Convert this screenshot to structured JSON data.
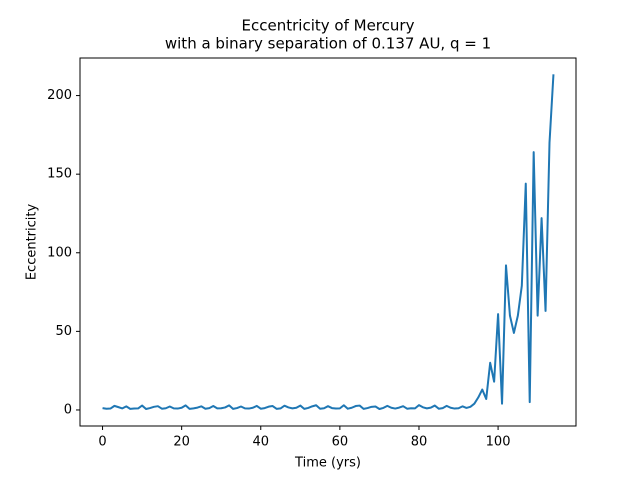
{
  "chart_data": {
    "type": "line",
    "title": [
      "Eccentricity of Mercury",
      "with a binary separation of 0.137 AU, q = 1"
    ],
    "x_label": "Time (yrs)",
    "y_label": "Eccentricity",
    "x": [
      0,
      1,
      2,
      3,
      4,
      5,
      6,
      7,
      8,
      9,
      10,
      11,
      12,
      13,
      14,
      15,
      16,
      17,
      18,
      19,
      20,
      21,
      22,
      23,
      24,
      25,
      26,
      27,
      28,
      29,
      30,
      31,
      32,
      33,
      34,
      35,
      36,
      37,
      38,
      39,
      40,
      41,
      42,
      43,
      44,
      45,
      46,
      47,
      48,
      49,
      50,
      51,
      52,
      53,
      54,
      55,
      56,
      57,
      58,
      59,
      60,
      61,
      62,
      63,
      64,
      65,
      66,
      67,
      68,
      69,
      70,
      71,
      72,
      73,
      74,
      75,
      76,
      77,
      78,
      79,
      80,
      81,
      82,
      83,
      84,
      85,
      86,
      87,
      88,
      89,
      90,
      91,
      92,
      93,
      94,
      95,
      96,
      97,
      98,
      99,
      100,
      101,
      102,
      103,
      104,
      105,
      106,
      107,
      108,
      109,
      110,
      111,
      112,
      113,
      114
    ],
    "series": [
      {
        "name": "Eccentricity",
        "color": "#1f77b4",
        "values": [
          1.2,
          0.8,
          0.9,
          2.6,
          1.8,
          1.0,
          2.3,
          0.7,
          0.9,
          1.0,
          2.8,
          0.6,
          1.2,
          2.0,
          2.4,
          0.8,
          1.1,
          2.2,
          1.0,
          0.9,
          1.4,
          2.9,
          0.7,
          1.0,
          1.5,
          2.3,
          0.8,
          1.2,
          2.5,
          1.0,
          1.1,
          1.6,
          2.9,
          0.7,
          1.2,
          2.2,
          1.0,
          0.9,
          1.4,
          2.6,
          0.8,
          1.2,
          2.1,
          2.5,
          0.7,
          1.0,
          2.7,
          1.6,
          1.0,
          1.4,
          2.8,
          0.7,
          1.3,
          2.3,
          3.0,
          0.8,
          1.1,
          2.4,
          1.2,
          0.9,
          1.0,
          3.0,
          0.8,
          1.4,
          2.5,
          2.8,
          0.7,
          1.2,
          2.0,
          2.2,
          0.6,
          1.3,
          2.6,
          1.4,
          0.9,
          1.5,
          2.4,
          0.8,
          1.1,
          1.0,
          3.1,
          1.7,
          1.0,
          1.5,
          2.8,
          0.8,
          1.2,
          2.6,
          1.4,
          0.9,
          1.1,
          2.3,
          1.3,
          2.0,
          4.0,
          8.0,
          13.0,
          7.0,
          30.0,
          18.0,
          61.0,
          4.0,
          92.0,
          60.0,
          49.0,
          60.0,
          79.0,
          144.0,
          5.0,
          164.0,
          60.0,
          122.0,
          63.0,
          170.0,
          213.5
        ]
      }
    ],
    "xlim": [
      -5.7,
      119.7
    ],
    "ylim": [
      -10.2,
      223.9
    ],
    "xticks": [
      0,
      20,
      40,
      60,
      80,
      100
    ],
    "yticks": [
      0,
      50,
      100,
      150,
      200
    ],
    "grid": false
  }
}
